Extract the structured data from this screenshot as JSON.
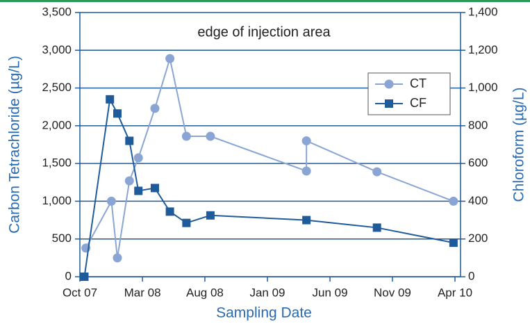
{
  "chart_data": {
    "type": "line",
    "annotation": "edge of injection area",
    "xlabel": "Sampling Date",
    "ylabel": "Carbon Tetrachloride (µg/L)",
    "y2label": "Chloroform (µg/L)",
    "xlim": [
      2007.75,
      2010.287
    ],
    "xticks": [
      {
        "value": 2007.75,
        "label": "Oct 07"
      },
      {
        "value": 2008.167,
        "label": "Mar 08"
      },
      {
        "value": 2008.583,
        "label": "Aug 08"
      },
      {
        "value": 2009.0,
        "label": "Jan 09"
      },
      {
        "value": 2009.417,
        "label": "Jun 09"
      },
      {
        "value": 2009.833,
        "label": "Nov 09"
      },
      {
        "value": 2010.25,
        "label": "Apr 10"
      }
    ],
    "ylim": [
      0,
      3500
    ],
    "yticks": [
      0,
      500,
      {
        "value": 1000,
        "label": "1,000"
      },
      {
        "value": 1500,
        "label": "1,500"
      },
      {
        "value": 2000,
        "label": "2,000"
      },
      {
        "value": 2500,
        "label": "2,500"
      },
      {
        "value": 3000,
        "label": "3,000"
      },
      {
        "value": 3500,
        "label": "3,500"
      }
    ],
    "y2lim": [
      0,
      1400
    ],
    "y2ticks": [
      0,
      200,
      400,
      600,
      800,
      {
        "value": 1000,
        "label": "1,000"
      },
      {
        "value": 1200,
        "label": "1,200"
      },
      {
        "value": 1400,
        "label": "1,400"
      }
    ],
    "grid": true,
    "legend": "upper right",
    "series": [
      {
        "name": "CT",
        "color": "#8aa5d3",
        "marker": "circle",
        "x": [
          2007.79,
          2007.96,
          2008.0,
          2008.08,
          2008.14,
          2008.25,
          2008.35,
          2008.46,
          2008.62,
          2009.26,
          2009.26,
          2009.73,
          2010.24
        ],
        "values": [
          380,
          1000,
          250,
          1270,
          1575,
          2230,
          2890,
          1860,
          1860,
          1400,
          1800,
          1390,
          1000
        ]
      },
      {
        "name": "CF",
        "color": "#1f5b9a",
        "marker": "square",
        "axis": "y2",
        "x": [
          2007.78,
          2007.95,
          2008.0,
          2008.08,
          2008.14,
          2008.25,
          2008.35,
          2008.46,
          2008.62,
          2009.26,
          2009.73,
          2010.24
        ],
        "values": [
          0,
          940,
          865,
          720,
          455,
          470,
          345,
          285,
          325,
          300,
          260,
          180
        ]
      }
    ]
  }
}
